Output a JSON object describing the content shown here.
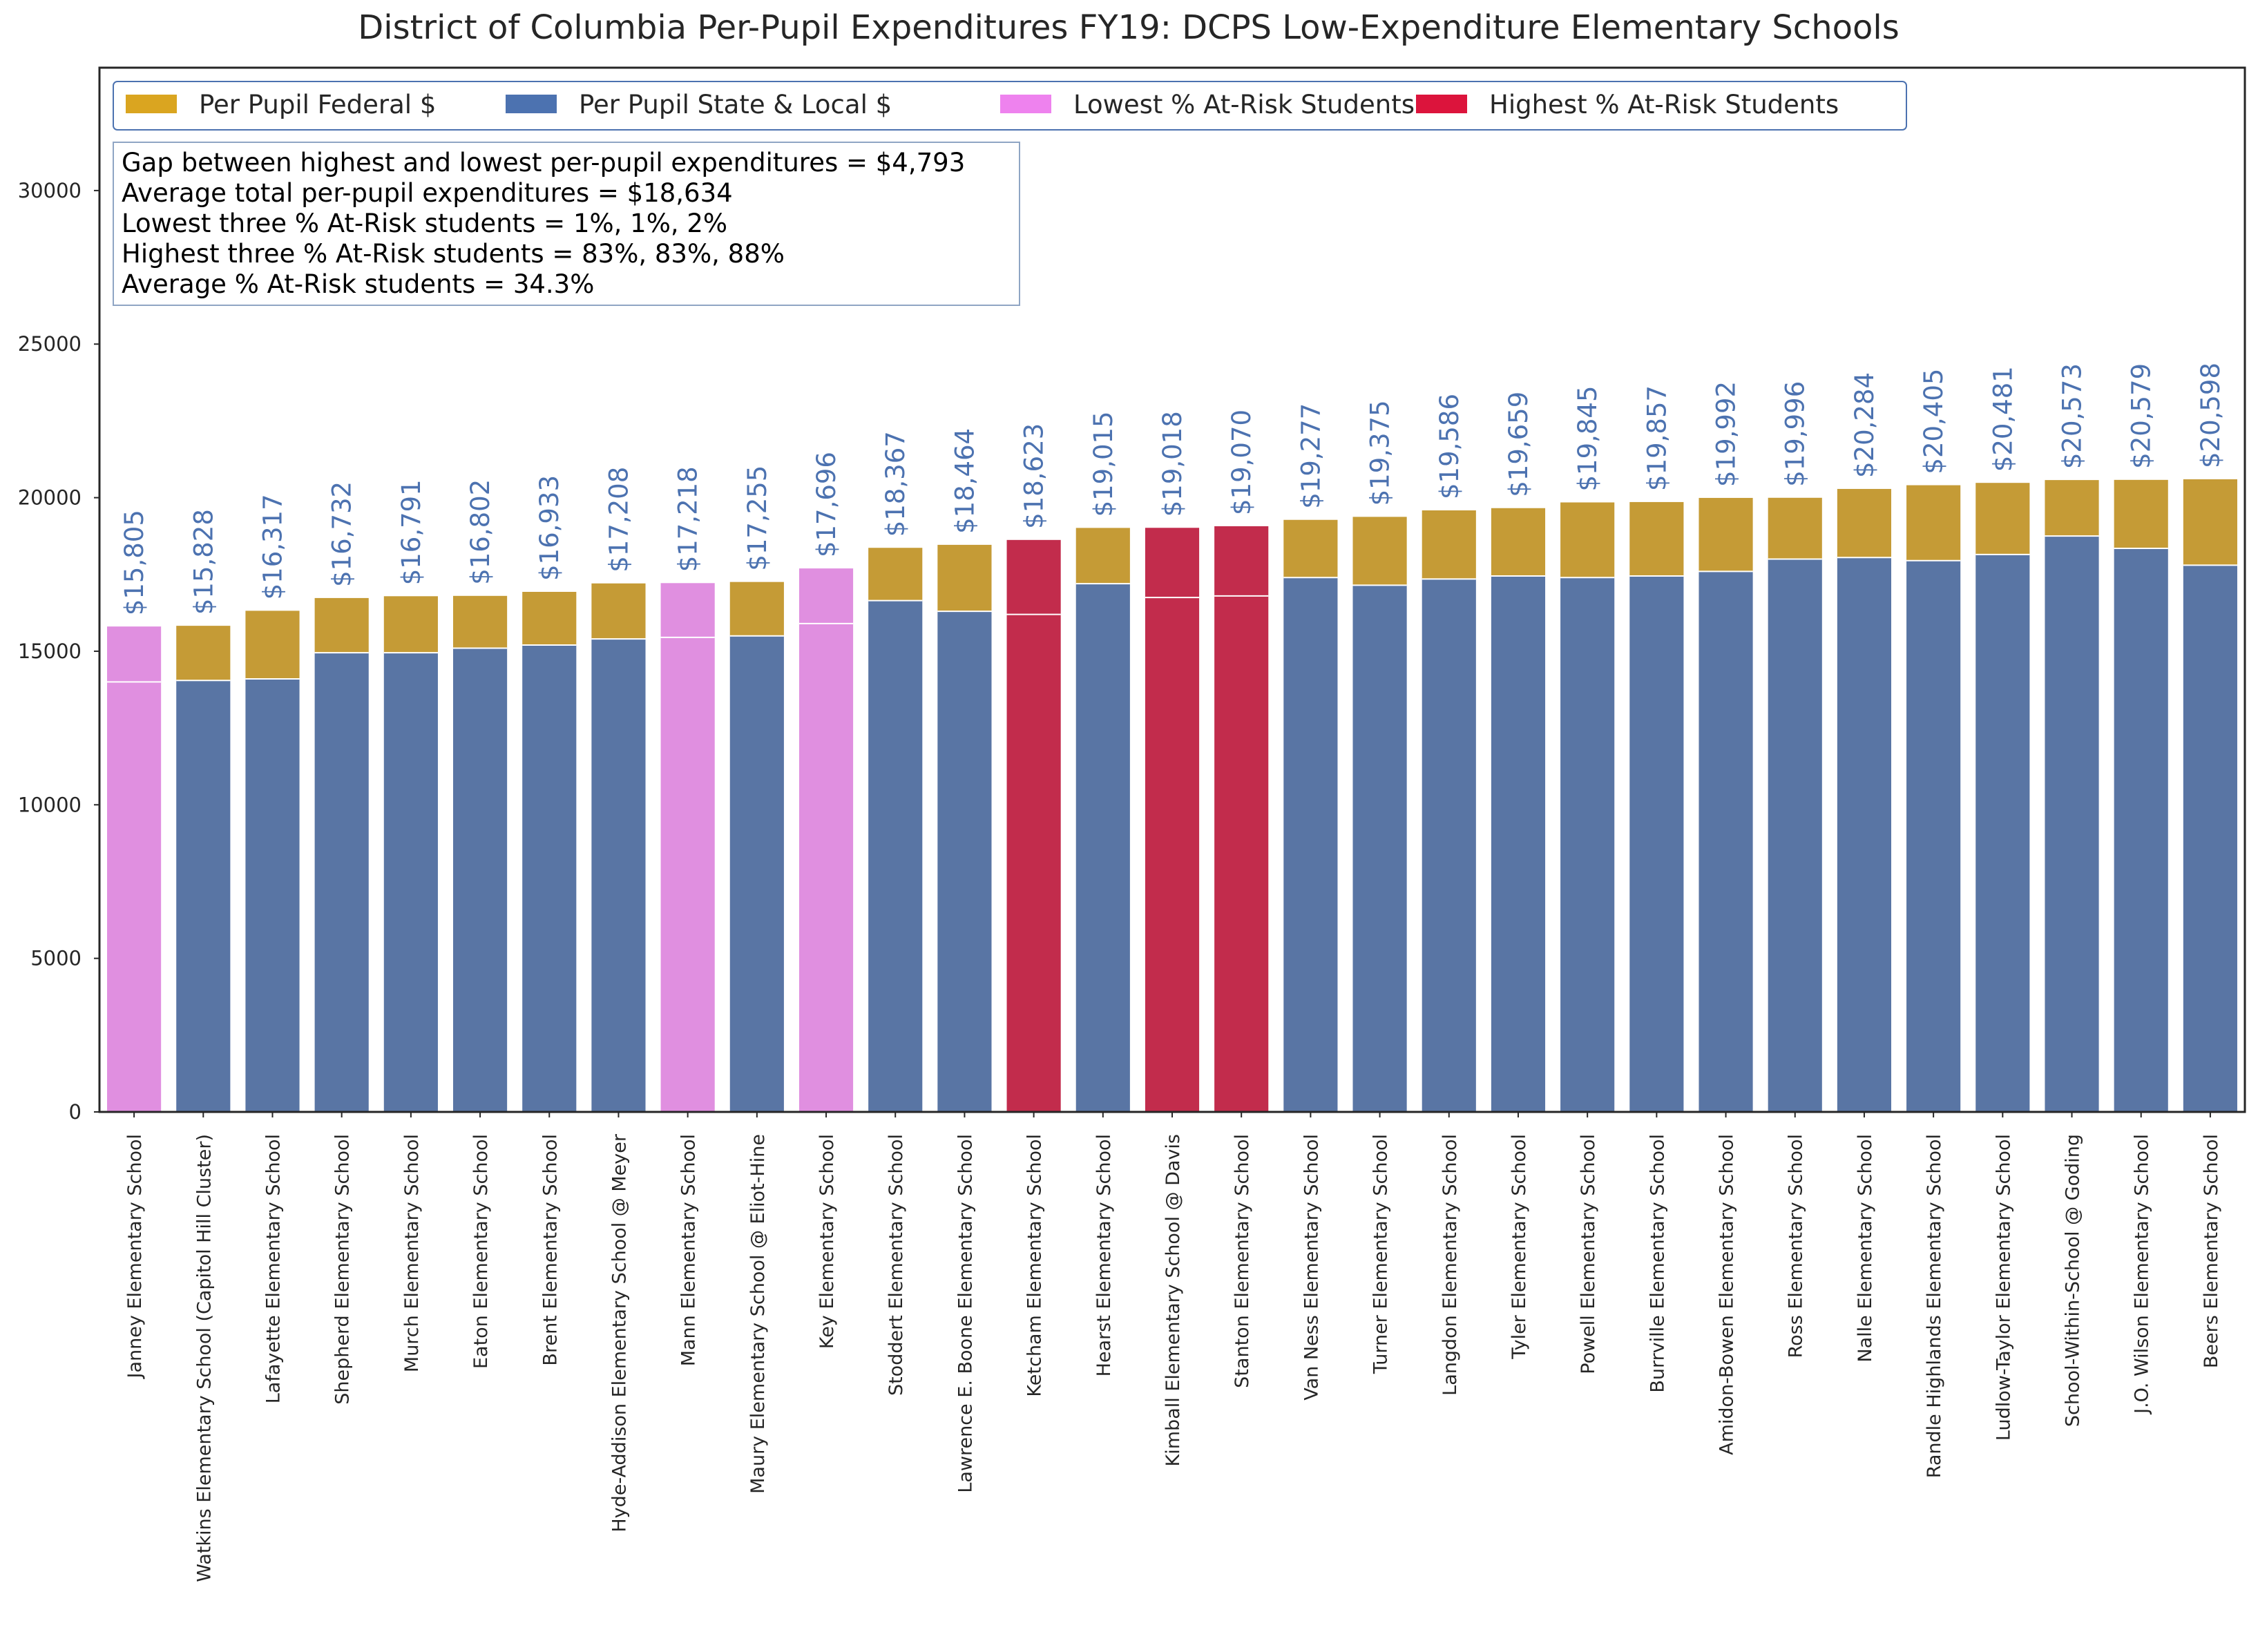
{
  "chart_data": {
    "type": "bar",
    "stacked": true,
    "title": "District of Columbia Per-Pupil Expenditures FY19: DCPS Low-Expenditure Elementary Schools",
    "xlabel": "",
    "ylabel": "",
    "ylim": [
      0,
      34000
    ],
    "yticks": [
      0,
      5000,
      10000,
      15000,
      20000,
      25000,
      30000
    ],
    "grid": false,
    "legend_position": "top-left",
    "legend": [
      {
        "name": "Per Pupil Federal $",
        "color": "#DAA520"
      },
      {
        "name": "Per Pupil State & Local $",
        "color": "#4C72B0"
      },
      {
        "name": "Lowest % At-Risk Students",
        "color": "#EE82EE"
      },
      {
        "name": "Highest % At-Risk Students",
        "color": "#DC143C"
      }
    ],
    "stats_box": [
      "Gap between highest and lowest per-pupil expenditures = $4,793",
      "Average total per-pupil expenditures = $18,634",
      "Lowest three % At-Risk students = 1%, 1%, 2%",
      "Highest three % At-Risk students = 83%, 83%, 88%",
      "Average % At-Risk students = 34.3%"
    ],
    "colors": {
      "federal": "#C59B36",
      "state_local": "#5975A4",
      "lowest_risk": "#E08FE0",
      "highest_risk": "#C22C4C",
      "data_label": "#4C72B0",
      "bar_divider": "#FFFFFF"
    },
    "categories": [
      "Janney Elementary School",
      "Watkins Elementary School (Capitol Hill Cluster)",
      "Lafayette Elementary School",
      "Shepherd Elementary School",
      "Murch Elementary School",
      "Eaton Elementary School",
      "Brent Elementary School",
      "Hyde-Addison Elementary School @ Meyer",
      "Mann Elementary School",
      "Maury Elementary School @ Eliot-Hine",
      "Key Elementary School",
      "Stoddert Elementary School",
      "Lawrence E. Boone Elementary School",
      "Ketcham Elementary School",
      "Hearst Elementary School",
      "Kimball Elementary School @ Davis",
      "Stanton Elementary School",
      "Van Ness Elementary School",
      "Turner Elementary School",
      "Langdon Elementary School",
      "Tyler Elementary School",
      "Powell Elementary School",
      "Burrville Elementary School",
      "Amidon-Bowen Elementary School",
      "Ross Elementary School",
      "Nalle Elementary School",
      "Randle Highlands Elementary School",
      "Ludlow-Taylor Elementary School",
      "School-Within-School @ Goding",
      "J.O. Wilson Elementary School",
      "Beers Elementary School"
    ],
    "series": [
      {
        "name": "Per Pupil State & Local $",
        "values": [
          14000,
          14050,
          14100,
          14950,
          14950,
          15100,
          15200,
          15400,
          15450,
          15500,
          15900,
          16650,
          16300,
          16200,
          17200,
          16750,
          16800,
          17400,
          17150,
          17350,
          17450,
          17400,
          17450,
          17600,
          18000,
          18050,
          17950,
          18150,
          18750,
          18350,
          17800
        ]
      },
      {
        "name": "Per Pupil Federal $",
        "values": [
          1805,
          1778,
          2217,
          1782,
          1841,
          1702,
          1733,
          1808,
          1768,
          1755,
          1796,
          1717,
          2164,
          2423,
          1815,
          2268,
          2270,
          1877,
          2225,
          2236,
          2209,
          2445,
          2407,
          2392,
          1996,
          2234,
          2455,
          2331,
          1823,
          2229,
          2798
        ]
      }
    ],
    "totals": [
      15805,
      15828,
      16317,
      16732,
      16791,
      16802,
      16933,
      17208,
      17218,
      17255,
      17696,
      18367,
      18464,
      18623,
      19015,
      19018,
      19070,
      19277,
      19375,
      19586,
      19659,
      19845,
      19857,
      19992,
      19996,
      20284,
      20405,
      20481,
      20573,
      20579,
      20598
    ],
    "total_labels": [
      "$15,805",
      "$15,828",
      "$16,317",
      "$16,732",
      "$16,791",
      "$16,802",
      "$16,933",
      "$17,208",
      "$17,218",
      "$17,255",
      "$17,696",
      "$18,367",
      "$18,464",
      "$18,623",
      "$19,015",
      "$19,018",
      "$19,070",
      "$19,277",
      "$19,375",
      "$19,586",
      "$19,659",
      "$19,845",
      "$19,857",
      "$19,992",
      "$19,996",
      "$20,284",
      "$20,405",
      "$20,481",
      "$20,573",
      "$20,579",
      "$20,598"
    ],
    "highlight": [
      "lowest",
      "none",
      "none",
      "none",
      "none",
      "none",
      "none",
      "none",
      "lowest",
      "none",
      "lowest",
      "none",
      "none",
      "highest",
      "none",
      "highest",
      "highest",
      "none",
      "none",
      "none",
      "none",
      "none",
      "none",
      "none",
      "none",
      "none",
      "none",
      "none",
      "none",
      "none",
      "none"
    ],
    "data_labels_shown": [
      true,
      true,
      true,
      true,
      true,
      true,
      true,
      true,
      true,
      true,
      true,
      true,
      true,
      true,
      true,
      true,
      true,
      true,
      true,
      true,
      true,
      true,
      true,
      true,
      true,
      true,
      true,
      true,
      true,
      true,
      true
    ]
  }
}
